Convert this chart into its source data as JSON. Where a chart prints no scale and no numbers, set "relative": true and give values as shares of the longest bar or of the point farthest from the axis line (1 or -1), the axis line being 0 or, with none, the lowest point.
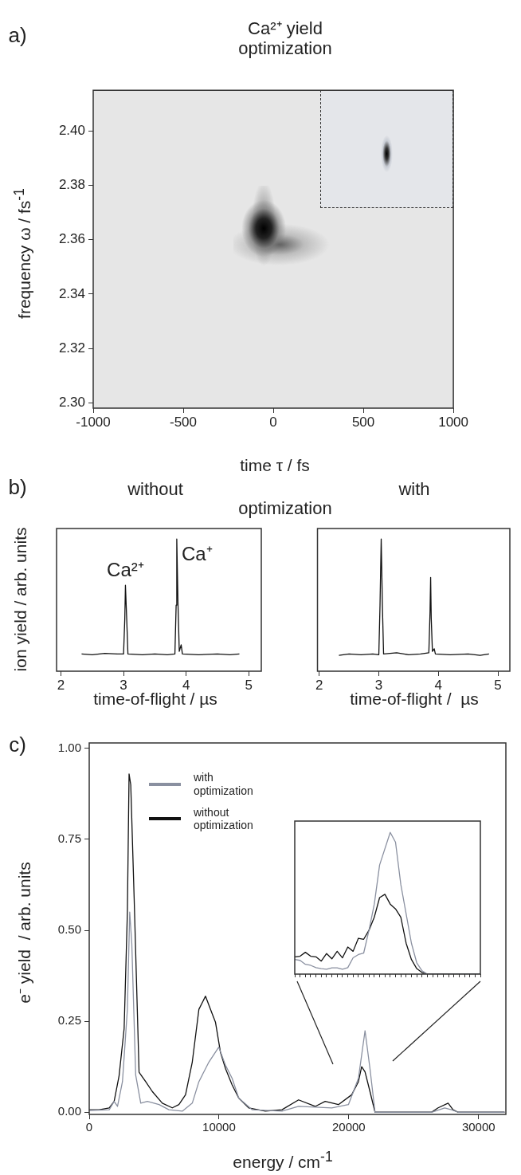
{
  "chart_data": [
    {
      "type": "scatter",
      "title": "Ca²⁺ yield\noptimization",
      "xlabel": "time τ / fs",
      "ylabel": "frequency ω / fs$^{-1}$",
      "annotations": [
        "a)"
      ],
      "xlim": [
        -1000,
        1000
      ],
      "xticks": [
        -1000,
        -500,
        0,
        500,
        1000
      ],
      "ylim": [
        2.298,
        2.415
      ],
      "yticks": [
        {
          "value": 2.3,
          "label": "2.30"
        },
        {
          "value": 2.32,
          "label": "2.32"
        },
        {
          "value": 2.34,
          "label": "2.34"
        },
        {
          "value": 2.36,
          "label": "2.36"
        },
        {
          "value": 2.38,
          "label": "2.38"
        },
        {
          "value": 2.4,
          "label": "2.40"
        }
      ]
    },
    {
      "type": "line",
      "title": "without",
      "subtitle": "optimization",
      "xlabel": "time-of-flight / µs",
      "ylabel": "ion yield / arb. units",
      "annotations": [
        "b)",
        {
          "text": "Ca²⁺",
          "x": 3.03,
          "y": 0.65
        },
        {
          "text": "Ca⁺",
          "x": 3.85,
          "y": 1
        }
      ],
      "relative": true,
      "xlim": [
        1.93,
        5.2
      ],
      "xticks": [
        2,
        3,
        4,
        5
      ],
      "series": [
        {
          "color": "#111111",
          "x": [
            2.33,
            2.5,
            2.7,
            2.9,
            3.0,
            3.02,
            3.03,
            3.05,
            3.07,
            3.3,
            3.5,
            3.7,
            3.82,
            3.84,
            3.85,
            3.87,
            3.89,
            3.92,
            3.94,
            4.2,
            4.5,
            4.7,
            4.85
          ],
          "values": [
            0.13,
            0.125,
            0.135,
            0.13,
            0.13,
            0.4,
            0.65,
            0.4,
            0.13,
            0.125,
            0.13,
            0.125,
            0.13,
            0.5,
            1,
            0.5,
            0.15,
            0.2,
            0.13,
            0.125,
            0.13,
            0.125,
            0.13
          ]
        }
      ]
    },
    {
      "type": "line",
      "title": "with",
      "xlabel": "time-of-flight /  µs",
      "relative": true,
      "xlim": [
        1.97,
        5.2
      ],
      "xticks": [
        2,
        3,
        4,
        5
      ],
      "series": [
        {
          "color": "#111111",
          "x": [
            2.33,
            2.5,
            2.7,
            2.9,
            3.0,
            3.02,
            3.04,
            3.06,
            3.08,
            3.3,
            3.5,
            3.7,
            3.84,
            3.86,
            3.87,
            3.88,
            3.9,
            3.93,
            3.95,
            4.2,
            4.5,
            4.7,
            4.85
          ],
          "values": [
            0.12,
            0.13,
            0.125,
            0.13,
            0.125,
            0.5,
            1,
            0.5,
            0.13,
            0.14,
            0.125,
            0.13,
            0.14,
            0.45,
            0.71,
            0.4,
            0.15,
            0.17,
            0.13,
            0.125,
            0.13,
            0.12,
            0.13
          ]
        }
      ]
    },
    {
      "type": "line",
      "xlabel": "energy / cm$^{-1}$",
      "ylabel": "e⁻ yield  / arb. units",
      "annotations": [
        "c)"
      ],
      "xlim": [
        0,
        32100
      ],
      "xticks": [
        0,
        10000,
        20000,
        30000
      ],
      "ylim": [
        -0.006,
        1.015
      ],
      "yticks": [
        {
          "value": 0,
          "label": "0.00"
        },
        {
          "value": 0.25,
          "label": "0.25"
        },
        {
          "value": 0.5,
          "label": "0.50"
        },
        {
          "value": 0.75,
          "label": "0.75"
        },
        {
          "value": 1,
          "label": "1.00"
        }
      ],
      "legend": "top left",
      "series": [
        {
          "name": "with optimization",
          "color": "#8a90a0",
          "x": [
            0,
            1540,
            1920,
            2180,
            2560,
            2940,
            3120,
            3280,
            3580,
            3970,
            4480,
            5380,
            6140,
            7170,
            7940,
            8450,
            9220,
            9980,
            10500,
            11010,
            11520,
            12540,
            14850,
            16130,
            18690,
            19970,
            20740,
            21250,
            21630,
            22020,
            26370,
            27390,
            27900,
            28420,
            32000
          ],
          "values": [
            0.005,
            0.007,
            0.03,
            0.016,
            0.084,
            0.283,
            0.55,
            0.464,
            0.102,
            0.025,
            0.03,
            0.021,
            0.007,
            0.003,
            0.025,
            0.084,
            0.138,
            0.179,
            0.129,
            0.093,
            0.039,
            0.007,
            0.003,
            0.016,
            0.012,
            0.021,
            0.093,
            0.224,
            0.12,
            0,
            0,
            0.012,
            0.007,
            0,
            0
          ]
        },
        {
          "name": "without optimization",
          "color": "#111111",
          "x": [
            0,
            770,
            1540,
            1920,
            2300,
            2690,
            2940,
            3070,
            3200,
            3460,
            3840,
            4350,
            4860,
            5630,
            6400,
            6910,
            7420,
            7940,
            8450,
            8960,
            9340,
            9730,
            10110,
            10500,
            11010,
            11520,
            12290,
            13570,
            14850,
            16130,
            17410,
            18180,
            19200,
            20220,
            20740,
            20990,
            21250,
            21630,
            22020,
            23810,
            26370,
            26880,
            27650,
            28030,
            28420,
            32000
          ],
          "values": [
            0.007,
            0.007,
            0.012,
            0.03,
            0.1,
            0.23,
            0.55,
            0.93,
            0.9,
            0.59,
            0.11,
            0.084,
            0.057,
            0.025,
            0.012,
            0.021,
            0.048,
            0.138,
            0.283,
            0.319,
            0.283,
            0.247,
            0.165,
            0.12,
            0.075,
            0.039,
            0.012,
            0.003,
            0.007,
            0.034,
            0.016,
            0.03,
            0.021,
            0.048,
            0.084,
            0.125,
            0.111,
            0.057,
            0,
            0,
            0,
            0.012,
            0.025,
            0.007,
            0,
            0
          ]
        }
      ]
    },
    {
      "type": "line",
      "relative": true,
      "categories": [
        null,
        null,
        null,
        null,
        null,
        null,
        null,
        null,
        null,
        null,
        null,
        null,
        null,
        null,
        null,
        null,
        null,
        null,
        null,
        null,
        null,
        null,
        null,
        null,
        null,
        null,
        null,
        null,
        null,
        null,
        null,
        null,
        null,
        null,
        null,
        null
      ],
      "series": [
        {
          "color": "#8a90a0",
          "values": [
            0.103,
            0.097,
            0.069,
            0.062,
            0.046,
            0.039,
            0.034,
            0.044,
            0.044,
            0.034,
            0.046,
            0.115,
            0.138,
            0.149,
            0.31,
            0.494,
            0.77,
            0.885,
            1,
            0.931,
            0.632,
            0.425,
            0.218,
            0.08,
            0.023,
            0,
            0,
            0,
            0,
            0,
            0,
            0,
            0,
            0,
            0,
            0
          ]
        },
        {
          "color": "#111111",
          "values": [
            0.122,
            0.126,
            0.154,
            0.126,
            0.122,
            0.092,
            0.145,
            0.108,
            0.161,
            0.115,
            0.191,
            0.161,
            0.253,
            0.246,
            0.31,
            0.402,
            0.54,
            0.563,
            0.494,
            0.46,
            0.402,
            0.218,
            0.103,
            0.039,
            0.011,
            0,
            0,
            0,
            0,
            0,
            0,
            0,
            0,
            0,
            0,
            0
          ]
        }
      ]
    }
  ]
}
